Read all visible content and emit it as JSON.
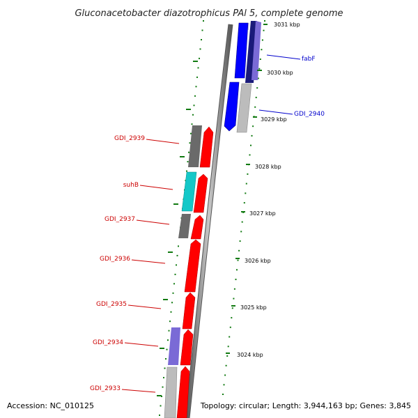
{
  "title": "Gluconacetobacter diazotrophicus PAl 5, complete genome",
  "footer": {
    "accession": "Accession: NC_010125",
    "topology": "Topology: circular; Length: 3,944,163 bp; Genes: 3,845"
  },
  "colors": {
    "backbone": "#8a8a8a",
    "tick_green": "#117a11",
    "forward_red": "#ff0000",
    "label_red": "#cc0000",
    "label_blue": "#0000cc",
    "cds_blue": "#0000ff",
    "navy": "#1a1a7a",
    "slate": "#7a6ad6",
    "grey_light": "#bcbcbc",
    "grey_dark": "#6a6a6a",
    "cyan": "#14c8c8"
  },
  "kbp_labels": [
    "3031 kbp",
    "3030 kbp",
    "3029 kbp",
    "3028 kbp",
    "3027 kbp",
    "3026 kbp",
    "3025 kbp",
    "3024 kbp"
  ],
  "right_gene_labels": [
    "fabF",
    "GDI_2940"
  ],
  "left_gene_labels": [
    "GDI_2939",
    "suhB",
    "GDI_2937",
    "GDI_2936",
    "GDI_2935",
    "GDI_2934",
    "GDI_2933"
  ]
}
